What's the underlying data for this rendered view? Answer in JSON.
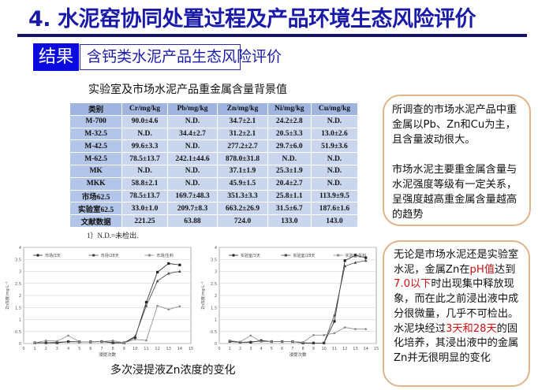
{
  "header": {
    "title": "4. 水泥窑协同处置过程及产品环境生态风险评价",
    "tag": "结果",
    "subtitle": "含钙类水泥产品生态风险评价"
  },
  "table": {
    "title": "实验室及市场水泥产品重金属含量背景值",
    "columns": [
      "类别",
      "Cr/mg/kg",
      "Pb/mg/kg",
      "Zn/mg/kg",
      "Ni/mg/kg",
      "Cu/mg/kg"
    ],
    "rows": [
      [
        "M-700",
        "90.0±4.6",
        "N.D.",
        "34.7±2.1",
        "24.2±2.8",
        "N.D."
      ],
      [
        "M-32.5",
        "N.D.",
        "34.4±2.7",
        "31.2±2.1",
        "20.5±3.3",
        "13.0±2.6"
      ],
      [
        "M-42.5",
        "99.6±3.3",
        "N.D.",
        "277.2±2.7",
        "29.7±6.0",
        "51.9±3.6"
      ],
      [
        "M-62.5",
        "78.5±13.7",
        "242.1±44.6",
        "878.0±31.8",
        "N.D.",
        "N.D."
      ],
      [
        "MK",
        "N.D.",
        "N.D.",
        "37.1±1.9",
        "25.3±1.9",
        "N.D."
      ],
      [
        "MKK",
        "58.8±2.1",
        "N.D.",
        "45.9±1.5",
        "20.4±2.7",
        "N.D."
      ],
      [
        "市场62.5",
        "78.5±13.7",
        "169.7±48.3",
        "351.3±3.3",
        "25.8±1.1",
        "113.9±9.5"
      ],
      [
        "实验室62.5",
        "33.0±1.0",
        "209.7±8.3",
        "663.2±26.9",
        "31.5±6.7",
        "187.6±1.6"
      ],
      [
        "文献数据",
        "221.25",
        "63.88",
        "724.0",
        "133.0",
        "143.0"
      ]
    ],
    "footnote": "1）N.D.=未检出."
  },
  "notes": {
    "n1_p1": "所调查的市场水泥产品中重金属以Pb、Zn和Cu为主，且含量波动很大。",
    "n1_p2": "市场水泥主要重金属含量与水泥强度等级有一定关系，呈强度越高重金属含量越高的趋势",
    "n2_a": "无论是市场水泥还是实验室水泥，金属Zn在",
    "n2_b": "pH值",
    "n2_c": "达到",
    "n2_d": "7.0以下",
    "n2_e": "时出现集中释放现象，而在此之前浸出液中成分很微量，几乎不可检出。",
    "n2_f": "水泥块经过",
    "n2_g": "3天和28天",
    "n2_h": "的固化培养，其浸出液中的金属Zn并无很明显的变化",
    "accent_red": "#d01010"
  },
  "caption": "多次浸提液Zn浓度的变化",
  "chart_data": [
    {
      "type": "line",
      "xlabel": "浸提次数",
      "ylabel": "Zn浓度/mg·L⁻¹",
      "xlim": [
        0,
        15
      ],
      "ylim": [
        0,
        4
      ],
      "xticks": [
        0,
        1,
        2,
        3,
        4,
        5,
        6,
        7,
        8,
        9,
        10,
        11,
        12,
        13,
        14,
        15
      ],
      "yticks": [
        "0",
        "0.5",
        "1",
        "1.5",
        "2",
        "2.5",
        "3",
        "3.5",
        "4"
      ],
      "grid": "horizontal",
      "legend": "top",
      "x": [
        1,
        2,
        3,
        4,
        5,
        6,
        7,
        8,
        9,
        10,
        11,
        12,
        13,
        14
      ],
      "series": [
        {
          "name": "市场/3天",
          "marker": "square",
          "values": [
            0.03,
            0.03,
            0.03,
            0.08,
            0.07,
            0.07,
            0.08,
            0.03,
            0.03,
            0.25,
            1.72,
            2.97,
            3.33,
            3.27
          ]
        },
        {
          "name": "市场/28天",
          "marker": "triangle",
          "values": [
            0.03,
            0.03,
            0.05,
            0.08,
            0.07,
            0.07,
            0.08,
            0.05,
            0.03,
            0.3,
            1.57,
            2.6,
            2.92,
            3.0
          ]
        },
        {
          "name": "市场/生料",
          "marker": "star",
          "values": [
            0.03,
            0.12,
            0.1,
            0.33,
            0.07,
            0.07,
            0.08,
            0.12,
            0.03,
            0.17,
            0.13,
            1.57,
            1.42,
            1.55
          ]
        }
      ]
    },
    {
      "type": "line",
      "xlabel": "浸提次数",
      "ylabel": "Zn浓度/mg·L⁻¹",
      "xlim": [
        0,
        15
      ],
      "ylim": [
        0,
        4
      ],
      "xticks": [
        0,
        1,
        2,
        3,
        4,
        5,
        6,
        7,
        8,
        9,
        10,
        11,
        12,
        13,
        14,
        15
      ],
      "yticks": [
        "0",
        "0.5",
        "1",
        "1.5",
        "2",
        "2.5",
        "3",
        "3.5",
        "4"
      ],
      "grid": "horizontal",
      "legend": "top",
      "x": [
        1,
        2,
        3,
        4,
        5,
        6,
        7,
        8,
        9,
        10,
        11,
        12,
        13,
        14
      ],
      "series": [
        {
          "name": "实验室/3天",
          "marker": "square",
          "values": [
            0.1,
            0.05,
            0.05,
            0.12,
            0.08,
            0.08,
            0.08,
            0.02,
            0.02,
            0.02,
            0.92,
            3.45,
            3.67,
            3.57
          ]
        },
        {
          "name": "实验室/28天",
          "marker": "triangle",
          "values": [
            0.08,
            0.05,
            0.07,
            0.1,
            0.08,
            0.08,
            0.08,
            0.03,
            0.02,
            0.02,
            1.18,
            3.22,
            3.37,
            3.45
          ]
        },
        {
          "name": "实验室/生料",
          "marker": "star",
          "values": [
            0.12,
            0.07,
            0.33,
            0.08,
            0.08,
            0.08,
            0.08,
            0.05,
            0.35,
            0.35,
            0.43,
            0.67,
            0.6,
            0.6
          ]
        }
      ]
    }
  ]
}
